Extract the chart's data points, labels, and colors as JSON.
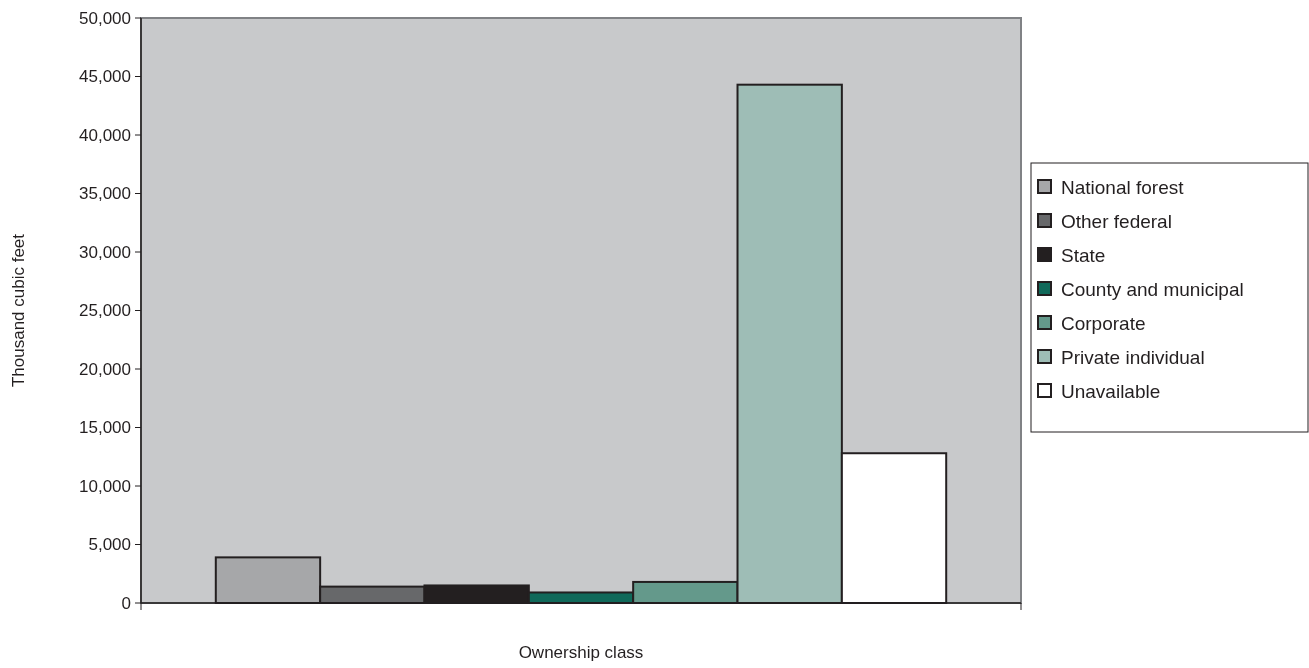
{
  "chart_data": {
    "type": "bar",
    "xlabel": "Ownership class",
    "ylabel": "Thousand cubic feet",
    "categories": [
      null
    ],
    "series": [
      {
        "name": "National forest",
        "color": "#a6a7a9",
        "values": [
          3900
        ]
      },
      {
        "name": "Other federal",
        "color": "#67686a",
        "values": [
          1400
        ]
      },
      {
        "name": "State",
        "color": "#231f20",
        "values": [
          1500
        ]
      },
      {
        "name": "County and municipal",
        "color": "#10695a",
        "values": [
          900
        ]
      },
      {
        "name": "Corporate",
        "color": "#64998b",
        "values": [
          1800
        ]
      },
      {
        "name": "Private individual",
        "color": "#9ebdb6",
        "values": [
          44300
        ]
      },
      {
        "name": "Unavailable",
        "color": "#ffffff",
        "values": [
          12800
        ]
      }
    ],
    "ylim": [
      0,
      50000
    ],
    "yticks": [
      {
        "value": 0,
        "label": "0"
      },
      {
        "value": 5000,
        "label": "5,000"
      },
      {
        "value": 10000,
        "label": "10,000"
      },
      {
        "value": 15000,
        "label": "15,000"
      },
      {
        "value": 20000,
        "label": "20,000"
      },
      {
        "value": 25000,
        "label": "25,000"
      },
      {
        "value": 30000,
        "label": "30,000"
      },
      {
        "value": 35000,
        "label": "35,000"
      },
      {
        "value": 40000,
        "label": "40,000"
      },
      {
        "value": 45000,
        "label": "45,000"
      },
      {
        "value": 50000,
        "label": "50,000"
      }
    ],
    "grid": false,
    "legend": "right"
  }
}
